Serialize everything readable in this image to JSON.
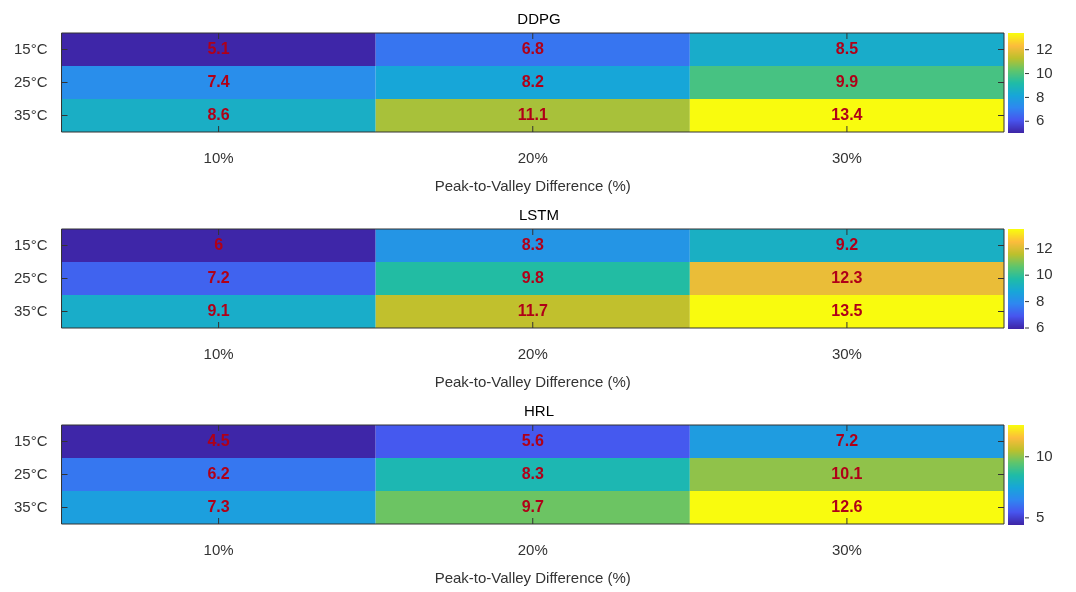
{
  "chart_data": [
    {
      "type": "heatmap",
      "title": "DDPG",
      "xlabel": "Peak-to-Valley Difference (%)",
      "categories": [
        "10%",
        "20%",
        "30%"
      ],
      "y_categories": [
        "15°C",
        "25°C",
        "35°C"
      ],
      "cells": [
        [
          5.1,
          6.8,
          8.5
        ],
        [
          7.4,
          8.2,
          9.9
        ],
        [
          8.6,
          11.1,
          13.4
        ]
      ],
      "clim": [
        5.1,
        13.4
      ],
      "cticks": [
        6,
        8,
        10,
        12
      ],
      "data_labels": true
    },
    {
      "type": "heatmap",
      "title": "LSTM",
      "xlabel": "Peak-to-Valley Difference (%)",
      "categories": [
        "10%",
        "20%",
        "30%"
      ],
      "y_categories": [
        "15°C",
        "25°C",
        "35°C"
      ],
      "cells": [
        [
          6.0,
          8.3,
          9.2
        ],
        [
          7.2,
          9.8,
          12.3
        ],
        [
          9.1,
          11.7,
          13.5
        ]
      ],
      "clim": [
        6.0,
        13.5
      ],
      "cticks": [
        6,
        8,
        10,
        12
      ],
      "data_labels": true
    },
    {
      "type": "heatmap",
      "title": "HRL",
      "xlabel": "Peak-to-Valley Difference (%)",
      "categories": [
        "10%",
        "20%",
        "30%"
      ],
      "y_categories": [
        "15°C",
        "25°C",
        "35°C"
      ],
      "cells": [
        [
          4.5,
          5.6,
          7.2
        ],
        [
          6.2,
          8.3,
          10.1
        ],
        [
          7.3,
          9.7,
          12.6
        ]
      ],
      "clim": [
        4.5,
        12.6
      ],
      "cticks": [
        5,
        10
      ],
      "data_labels": true
    }
  ]
}
